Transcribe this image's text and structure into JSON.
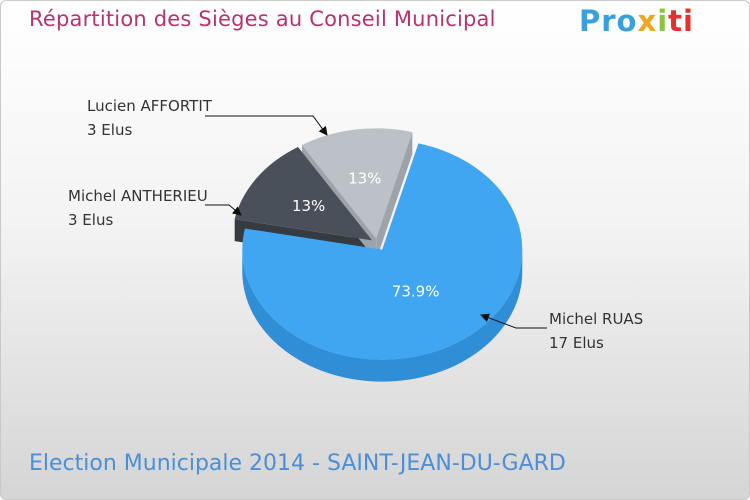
{
  "header": {
    "title": "Répartition des Sièges au Conseil Municipal",
    "logo": {
      "part1": "Pro",
      "part2": "x",
      "part3": "i",
      "part4": "ti",
      "colors": [
        "#3aa0dc",
        "#f3a51d",
        "#8cc43f",
        "#e3312d"
      ]
    }
  },
  "footer": {
    "text": "Election Municipale 2014 - SAINT-JEAN-DU-GARD"
  },
  "chart_data": {
    "type": "pie",
    "title": "Répartition des Sièges au Conseil Municipal",
    "slices": [
      {
        "name": "Michel RUAS",
        "seats_label": "17 Elus",
        "seats": 17,
        "percent_label": "73.9%",
        "color": "#41a6f2",
        "side_color": "#2f8ed6"
      },
      {
        "name": "Michel ANTHERIEU",
        "seats_label": "3 Elus",
        "seats": 3,
        "percent_label": "13%",
        "color": "#4a5059",
        "side_color": "#363b42"
      },
      {
        "name": "Lucien AFFORTIT",
        "seats_label": "3 Elus",
        "seats": 3,
        "percent_label": "13%",
        "color": "#bcc1c7",
        "side_color": "#9ea3a9"
      }
    ]
  }
}
